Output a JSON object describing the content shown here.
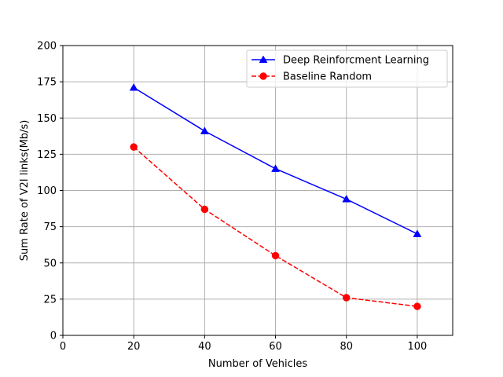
{
  "chart_data": {
    "type": "line",
    "title": "",
    "xlabel": "Number of Vehicles",
    "ylabel": "Sum Rate of V2I links(Mb/s)",
    "xlim": [
      0,
      110
    ],
    "ylim": [
      0,
      200
    ],
    "xticks": [
      0,
      20,
      40,
      60,
      80,
      100
    ],
    "yticks": [
      0,
      25,
      50,
      75,
      100,
      125,
      150,
      175,
      200
    ],
    "grid": true,
    "legend_position": "upper right",
    "series": [
      {
        "name": " Deep Reinforcment Learning",
        "color": "#0000ff",
        "line_style": "solid",
        "marker": "triangle-up",
        "x": [
          20,
          40,
          60,
          80,
          100
        ],
        "y": [
          171,
          141,
          115,
          94,
          70
        ]
      },
      {
        "name": " Baseline Random",
        "color": "#ff0000",
        "line_style": "dashed",
        "marker": "circle",
        "x": [
          20,
          40,
          60,
          80,
          100
        ],
        "y": [
          130,
          87,
          55,
          26,
          20
        ]
      }
    ]
  }
}
